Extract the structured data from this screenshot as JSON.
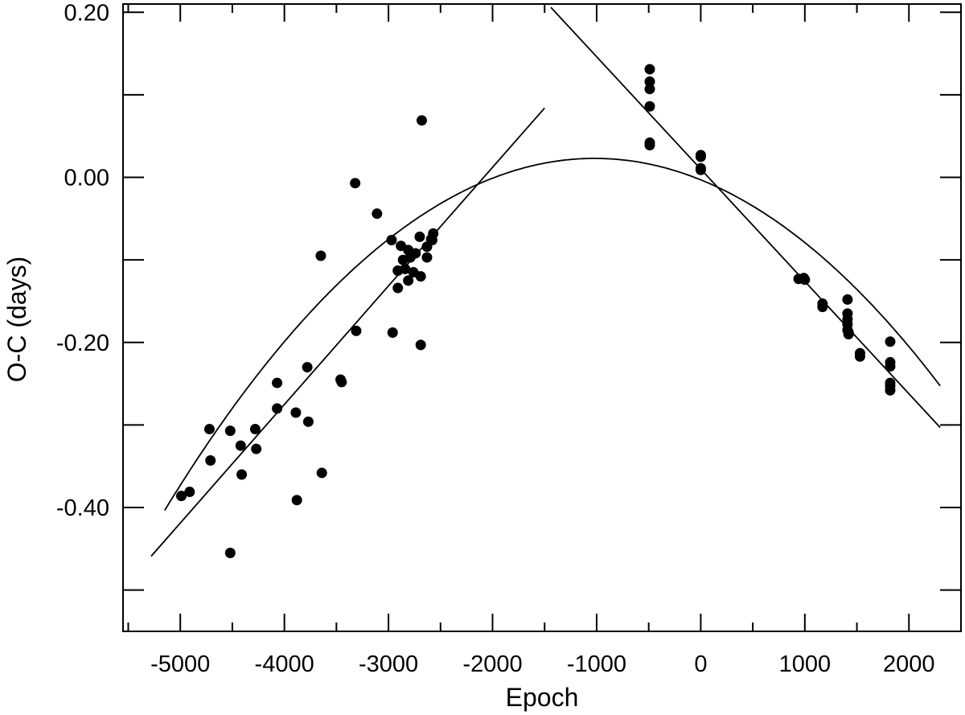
{
  "chart_data": {
    "type": "scatter",
    "xlabel": "Epoch",
    "ylabel": "O-C (days)",
    "xlim": [
      -5550,
      2500
    ],
    "ylim": [
      -0.55,
      0.21
    ],
    "grid": false,
    "xticks": [
      -5000,
      -4000,
      -3000,
      -2000,
      -1000,
      0,
      1000,
      2000
    ],
    "xtick_labels": [
      "-5000",
      "-4000",
      "-3000",
      "-2000",
      "-1000",
      "0",
      "1000",
      "2000"
    ],
    "yticks": [
      0.2,
      0.0,
      -0.2,
      -0.4
    ],
    "ytick_labels": [
      "0.20",
      "0.00",
      "-0.20",
      "-0.40"
    ],
    "yminor_ticks": [
      0.1,
      -0.1,
      -0.3,
      -0.5
    ],
    "xminor_ticks": [
      -5500,
      -4500,
      -3500,
      -2500,
      -1500,
      -500,
      500,
      1500
    ],
    "series": [
      {
        "type": "scatter",
        "marker": "filled-circle",
        "color": "#000000",
        "x": [
          -4990,
          -4910,
          -4720,
          -4710,
          -4520,
          -4520,
          -4420,
          -4410,
          -4280,
          -4270,
          -4070,
          -4070,
          -3890,
          -3880,
          -3780,
          -3770,
          -3650,
          -3640,
          -3460,
          -3450,
          -3320,
          -3310,
          -3110,
          -2970,
          -2960,
          -2910,
          -2910,
          -2880,
          -2860,
          -2840,
          -2810,
          -2810,
          -2790,
          -2760,
          -2740,
          -2700,
          -2690,
          -2690,
          -2680,
          -2630,
          -2630,
          -2590,
          -2570,
          -2580,
          -490,
          -490,
          -490,
          -490,
          -490,
          -490,
          0,
          0,
          0,
          0,
          940,
          990,
          1000,
          1170,
          1170,
          1410,
          1410,
          1410,
          1410,
          1410,
          1420,
          1420,
          1530,
          1530,
          1820,
          1820,
          1820,
          1820,
          1820,
          1820
        ],
        "y": [
          -0.386,
          -0.381,
          -0.305,
          -0.343,
          -0.307,
          -0.455,
          -0.325,
          -0.36,
          -0.305,
          -0.329,
          -0.28,
          -0.249,
          -0.285,
          -0.391,
          -0.23,
          -0.296,
          -0.095,
          -0.358,
          -0.245,
          -0.248,
          -0.007,
          -0.186,
          -0.044,
          -0.076,
          -0.188,
          -0.113,
          -0.134,
          -0.083,
          -0.1,
          -0.111,
          -0.088,
          -0.125,
          -0.097,
          -0.115,
          -0.092,
          -0.072,
          -0.12,
          -0.203,
          0.069,
          -0.084,
          -0.097,
          -0.075,
          -0.068,
          -0.076,
          0.131,
          0.116,
          0.107,
          0.086,
          0.042,
          0.039,
          0.027,
          0.025,
          0.011,
          0.009,
          -0.123,
          -0.122,
          -0.124,
          -0.153,
          -0.157,
          -0.148,
          -0.165,
          -0.172,
          -0.178,
          -0.185,
          -0.188,
          -0.19,
          -0.213,
          -0.217,
          -0.199,
          -0.224,
          -0.229,
          -0.249,
          -0.253,
          -0.258
        ]
      },
      {
        "type": "line",
        "style": "straight-fit",
        "x": [
          -5280,
          -1500
        ],
        "y": [
          -0.459,
          0.084
        ]
      },
      {
        "type": "line",
        "style": "straight-fit",
        "x": [
          -1440,
          2300
        ],
        "y": [
          0.206,
          -0.303
        ]
      },
      {
        "type": "line",
        "style": "parabolic-fit",
        "vertex": [
          -1020,
          0.023
        ],
        "curvature": -2.5e-08,
        "x_range": [
          -5150,
          2300
        ]
      }
    ]
  }
}
